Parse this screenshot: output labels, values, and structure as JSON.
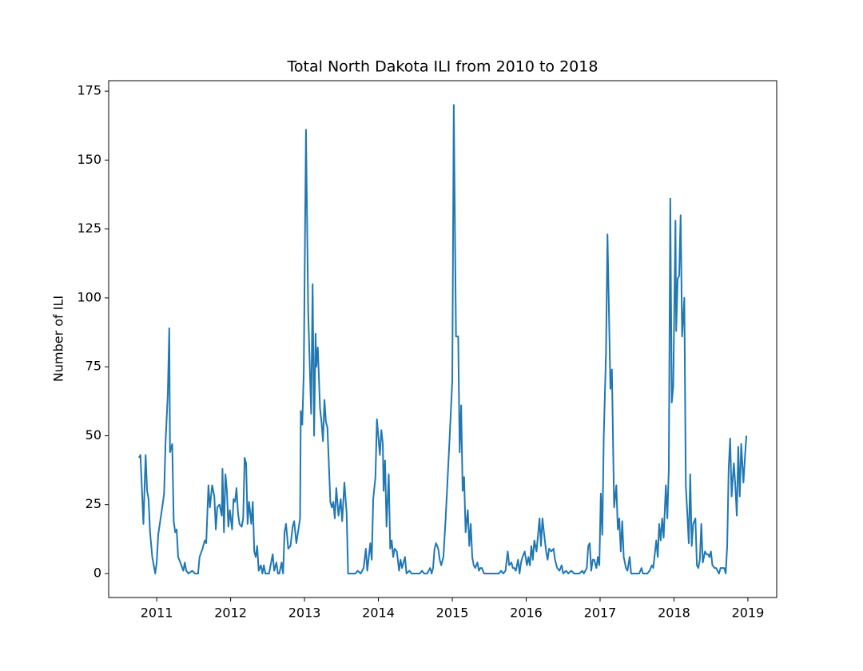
{
  "chart_data": {
    "type": "line",
    "title": "Total North Dakota ILI from 2010 to 2018",
    "y_label": "Number of ILI",
    "xlim": [
      2010.35,
      2019.39
    ],
    "xticks": [
      2011,
      2012,
      2013,
      2014,
      2015,
      2016,
      2017,
      2018,
      2019
    ],
    "ylim": [
      -8.7,
      178.8
    ],
    "yticks": [
      0,
      25,
      50,
      75,
      100,
      125,
      150,
      175
    ],
    "grid": false,
    "x": [
      2010.76,
      2010.78,
      2010.82,
      2010.85,
      2010.87,
      2010.89,
      2010.91,
      2010.94,
      2010.98,
      2011.0,
      2011.02,
      2011.08,
      2011.1,
      2011.12,
      2011.15,
      2011.17,
      2011.18,
      2011.21,
      2011.23,
      2011.25,
      2011.27,
      2011.29,
      2011.32,
      2011.36,
      2011.38,
      2011.4,
      2011.43,
      2011.48,
      2011.52,
      2011.56,
      2011.58,
      2011.62,
      2011.65,
      2011.67,
      2011.7,
      2011.72,
      2011.75,
      2011.78,
      2011.8,
      2011.82,
      2011.85,
      2011.88,
      2011.89,
      2011.91,
      2011.93,
      2011.95,
      2011.97,
      2011.99,
      2012.02,
      2012.04,
      2012.06,
      2012.08,
      2012.1,
      2012.12,
      2012.15,
      2012.17,
      2012.19,
      2012.21,
      2012.23,
      2012.25,
      2012.28,
      2012.3,
      2012.32,
      2012.34,
      2012.36,
      2012.38,
      2012.41,
      2012.43,
      2012.45,
      2012.47,
      2012.52,
      2012.57,
      2012.59,
      2012.62,
      2012.64,
      2012.66,
      2012.69,
      2012.71,
      2012.73,
      2012.75,
      2012.78,
      2012.81,
      2012.84,
      2012.86,
      2012.89,
      2012.94,
      2012.95,
      2012.97,
      2012.99,
      2013.02,
      2013.05,
      2013.09,
      2013.11,
      2013.13,
      2013.15,
      2013.16,
      2013.18,
      2013.21,
      2013.23,
      2013.25,
      2013.27,
      2013.29,
      2013.31,
      2013.35,
      2013.37,
      2013.39,
      2013.41,
      2013.43,
      2013.46,
      2013.49,
      2013.51,
      2013.54,
      2013.57,
      2013.59,
      2013.64,
      2013.69,
      2013.72,
      2013.76,
      2013.8,
      2013.83,
      2013.85,
      2013.89,
      2013.91,
      2013.93,
      2013.96,
      2013.98,
      2014.02,
      2014.04,
      2014.06,
      2014.07,
      2014.09,
      2014.11,
      2014.14,
      2014.16,
      2014.18,
      2014.2,
      2014.22,
      2014.25,
      2014.28,
      2014.3,
      2014.32,
      2014.34,
      2014.36,
      2014.38,
      2014.42,
      2014.45,
      2014.5,
      2014.56,
      2014.59,
      2014.62,
      2014.66,
      2014.7,
      2014.72,
      2014.74,
      2014.76,
      2014.78,
      2014.81,
      2014.83,
      2014.85,
      2014.88,
      2014.91,
      2014.96,
      2015.0,
      2015.02,
      2015.05,
      2015.08,
      2015.1,
      2015.12,
      2015.14,
      2015.16,
      2015.18,
      2015.21,
      2015.23,
      2015.25,
      2015.27,
      2015.29,
      2015.31,
      2015.34,
      2015.36,
      2015.38,
      2015.4,
      2015.43,
      2015.48,
      2015.53,
      2015.58,
      2015.63,
      2015.66,
      2015.69,
      2015.72,
      2015.75,
      2015.77,
      2015.8,
      2015.82,
      2015.84,
      2015.86,
      2015.89,
      2015.91,
      2015.93,
      2015.95,
      2015.98,
      2016.01,
      2016.03,
      2016.05,
      2016.07,
      2016.09,
      2016.11,
      2016.14,
      2016.16,
      2016.18,
      2016.2,
      2016.22,
      2016.24,
      2016.27,
      2016.29,
      2016.31,
      2016.34,
      2016.37,
      2016.39,
      2016.42,
      2016.45,
      2016.48,
      2016.5,
      2016.54,
      2016.57,
      2016.61,
      2016.65,
      2016.72,
      2016.76,
      2016.78,
      2016.82,
      2016.84,
      2016.86,
      2016.88,
      2016.9,
      2016.92,
      2016.95,
      2016.97,
      2016.99,
      2017.01,
      2017.03,
      2017.05,
      2017.08,
      2017.1,
      2017.12,
      2017.14,
      2017.16,
      2017.18,
      2017.19,
      2017.22,
      2017.24,
      2017.26,
      2017.28,
      2017.3,
      2017.32,
      2017.35,
      2017.37,
      2017.4,
      2017.42,
      2017.48,
      2017.53,
      2017.56,
      2017.58,
      2017.64,
      2017.67,
      2017.7,
      2017.72,
      2017.76,
      2017.78,
      2017.8,
      2017.82,
      2017.84,
      2017.86,
      2017.89,
      2017.91,
      2017.93,
      2017.95,
      2017.97,
      2017.99,
      2018.02,
      2018.03,
      2018.05,
      2018.07,
      2018.09,
      2018.11,
      2018.14,
      2018.16,
      2018.18,
      2018.2,
      2018.22,
      2018.24,
      2018.26,
      2018.29,
      2018.31,
      2018.33,
      2018.35,
      2018.37,
      2018.39,
      2018.42,
      2018.44,
      2018.46,
      2018.48,
      2018.5,
      2018.52,
      2018.55,
      2018.57,
      2018.59,
      2018.61,
      2018.63,
      2018.65,
      2018.68,
      2018.7,
      2018.72,
      2018.74,
      2018.76,
      2018.78,
      2018.81,
      2018.83,
      2018.85,
      2018.87,
      2018.89,
      2018.91,
      2018.94,
      2018.96,
      2018.98
    ],
    "series": [
      {
        "color": "#1f77b4",
        "values": [
          42,
          43,
          18,
          43,
          30,
          27,
          15,
          6,
          0,
          4,
          14,
          25,
          29,
          48,
          65,
          89,
          44,
          47,
          19,
          15,
          16,
          6,
          4,
          1,
          4,
          1,
          0,
          1,
          0,
          0,
          6,
          9,
          12,
          11,
          32,
          24,
          32,
          28,
          16,
          24,
          25,
          21,
          38,
          15,
          36,
          30,
          17,
          23,
          16,
          27,
          26,
          31,
          22,
          18,
          17,
          20,
          42,
          40,
          18,
          26,
          18,
          26,
          8,
          6,
          10,
          1,
          3,
          0,
          3,
          0,
          0,
          7,
          1,
          4,
          0,
          0,
          4,
          0,
          15,
          18,
          9,
          10,
          17,
          19,
          11,
          20,
          59,
          54,
          73,
          161,
          95,
          58,
          105,
          50,
          87,
          75,
          82,
          60,
          55,
          48,
          63,
          55,
          53,
          26,
          24,
          26,
          20,
          31,
          21,
          27,
          19,
          33,
          22,
          0,
          0,
          0,
          1,
          0,
          2,
          9,
          1,
          11,
          5,
          27,
          35,
          56,
          43,
          52,
          47,
          30,
          41,
          17,
          36,
          9,
          12,
          6,
          9,
          8,
          1,
          5,
          2,
          4,
          6,
          0,
          1,
          0,
          0,
          0,
          1,
          0,
          0,
          2,
          0,
          2,
          9,
          11,
          9,
          5,
          3,
          6,
          20,
          47,
          70,
          170,
          86,
          86,
          44,
          61,
          30,
          35,
          15,
          23,
          10,
          18,
          6,
          3,
          2,
          4,
          1,
          2,
          2,
          0,
          0,
          0,
          0,
          0,
          1,
          0,
          1,
          8,
          3,
          4,
          2,
          2,
          1,
          5,
          0,
          4,
          6,
          8,
          3,
          6,
          3,
          10,
          5,
          12,
          8,
          14,
          20,
          10,
          20,
          15,
          8,
          5,
          9,
          8,
          9,
          5,
          2,
          1,
          3,
          0,
          1,
          0,
          1,
          0,
          0,
          1,
          0,
          2,
          10,
          11,
          1,
          5,
          5,
          2,
          6,
          3,
          29,
          14,
          50,
          80,
          123,
          95,
          67,
          74,
          40,
          24,
          32,
          16,
          20,
          8,
          19,
          6,
          2,
          1,
          6,
          0,
          0,
          0,
          2,
          0,
          0,
          1,
          3,
          2,
          12,
          6,
          18,
          12,
          20,
          13,
          32,
          20,
          38,
          136,
          62,
          68,
          128,
          88,
          107,
          108,
          130,
          86,
          100,
          32,
          22,
          11,
          36,
          10,
          18,
          20,
          3,
          2,
          5,
          18,
          4,
          8,
          7,
          7,
          6,
          8,
          3,
          2,
          2,
          1,
          0,
          2,
          2,
          2,
          0,
          10,
          38,
          49,
          28,
          40,
          32,
          21,
          46,
          28,
          47,
          33,
          42,
          50
        ]
      }
    ]
  }
}
